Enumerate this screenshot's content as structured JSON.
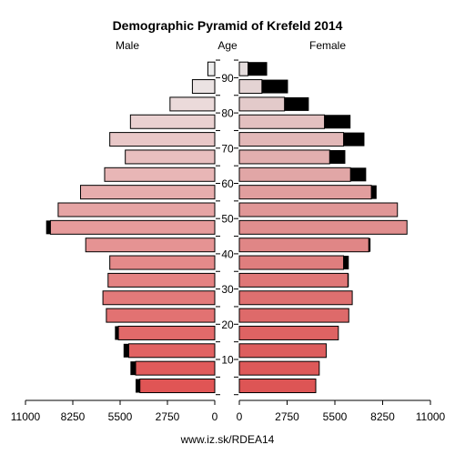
{
  "chart_data": {
    "type": "bar",
    "title": "Demographic Pyramid of Krefeld 2014",
    "left_label": "Male",
    "center_label": "Age",
    "right_label": "Female",
    "source": "www.iz.sk/RDEA14",
    "age_ticks": [
      "10",
      "20",
      "30",
      "40",
      "50",
      "60",
      "70",
      "80",
      "90"
    ],
    "x_ticks_left": [
      "11000",
      "8250",
      "5500",
      "2750",
      "0"
    ],
    "x_ticks_right": [
      "0",
      "2750",
      "5500",
      "8250",
      "11000"
    ],
    "xlim": [
      0,
      11000
    ],
    "age_groups_bottom_to_top": [
      "0-4",
      "5-9",
      "10-14",
      "15-19",
      "20-24",
      "25-29",
      "30-34",
      "35-39",
      "40-44",
      "45-49",
      "50-54",
      "55-59",
      "60-64",
      "65-69",
      "70-74",
      "75-79",
      "80-84",
      "85-89",
      "90+"
    ],
    "series": [
      {
        "name": "Male",
        "total": [
          4600,
          4900,
          5300,
          5800,
          6300,
          6500,
          6200,
          6100,
          7500,
          9800,
          9100,
          7800,
          6400,
          5200,
          6100,
          4900,
          2600,
          1300,
          400
        ],
        "excess": [
          250,
          300,
          300,
          200,
          0,
          0,
          0,
          0,
          0,
          250,
          0,
          0,
          0,
          0,
          0,
          0,
          0,
          0,
          0
        ]
      },
      {
        "name": "Female",
        "total": [
          4400,
          4600,
          5000,
          5700,
          6300,
          6500,
          6300,
          6300,
          7550,
          9650,
          9100,
          7900,
          7300,
          6100,
          7200,
          6400,
          4000,
          2800,
          1600
        ],
        "excess": [
          0,
          0,
          0,
          0,
          0,
          0,
          50,
          300,
          100,
          0,
          0,
          300,
          900,
          900,
          1200,
          1500,
          1400,
          1500,
          1100
        ]
      }
    ]
  }
}
